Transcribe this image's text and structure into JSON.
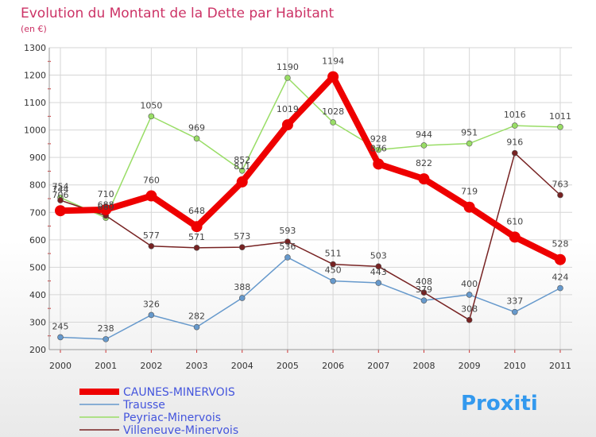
{
  "chart_data": {
    "type": "line",
    "title": "Evolution du Montant de la Dette par Habitant",
    "subtitle": "(en €)",
    "xlabel": "",
    "ylabel": "",
    "x": [
      "2000",
      "2001",
      "2002",
      "2003",
      "2004",
      "2005",
      "2006",
      "2007",
      "2008",
      "2009",
      "2010",
      "2011"
    ],
    "ylim": [
      200,
      1300
    ],
    "yticks": [
      200,
      300,
      400,
      500,
      600,
      700,
      800,
      900,
      1000,
      1100,
      1200,
      1300
    ],
    "grid": true,
    "legend_position": "bottom-left",
    "series": [
      {
        "name": "CAUNES-MINERVOIS",
        "color": "#ee0000",
        "values": [
          706,
          710,
          760,
          648,
          811,
          1019,
          1194,
          876,
          822,
          719,
          610,
          528
        ]
      },
      {
        "name": "Trausse",
        "color": "#6699cc",
        "values": [
          245,
          238,
          326,
          282,
          388,
          536,
          450,
          443,
          379,
          400,
          337,
          424
        ]
      },
      {
        "name": "Peyriac-Minervois",
        "color": "#99dd66",
        "values": [
          754,
          680,
          1050,
          969,
          852,
          1190,
          1028,
          928,
          944,
          951,
          1016,
          1011
        ]
      },
      {
        "name": "Villeneuve-Minervois",
        "color": "#772222",
        "values": [
          744,
          688,
          577,
          571,
          573,
          593,
          511,
          503,
          408,
          308,
          916,
          763
        ]
      }
    ]
  },
  "logo": {
    "text": "Proxiti"
  }
}
